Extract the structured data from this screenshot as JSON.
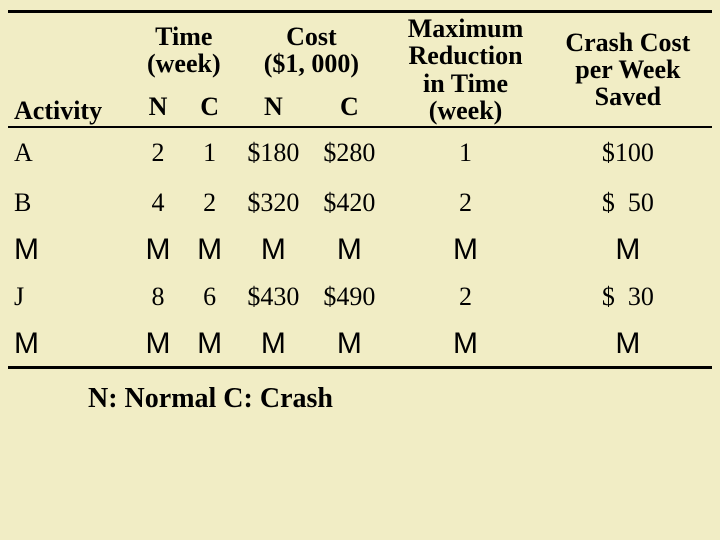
{
  "style": {
    "background_color": "#f1edc5",
    "text_color": "#000000",
    "rule_color": "#000000",
    "font_family": "Times New Roman",
    "header_font_weight": "bold",
    "base_font_size_pt": 20
  },
  "table": {
    "type": "table",
    "headers": {
      "activity": "Activity",
      "time_group": "Time\n(week)",
      "time_sub_n": "N",
      "time_sub_c": "C",
      "cost_group": "Cost\n($1, 000)",
      "cost_sub_n": "N",
      "cost_sub_c": "C",
      "max_reduction": "Maximum\nReduction\nin Time\n(week)",
      "crash_cost": "Crash Cost\nper Week\nSaved"
    },
    "rows": [
      {
        "activity": "A",
        "time_n": "2",
        "time_c": "1",
        "cost_n": "$180",
        "cost_c": "$280",
        "max_red": "1",
        "crash_cost": "$100"
      },
      {
        "activity": "B",
        "time_n": "4",
        "time_c": "2",
        "cost_n": "$320",
        "cost_c": "$420",
        "max_red": "2",
        "crash_cost": "$  50"
      },
      {
        "activity": "M",
        "time_n": "M",
        "time_c": "M",
        "cost_n": "M",
        "cost_c": "M",
        "max_red": "M",
        "crash_cost": "M",
        "ellipsis": true
      },
      {
        "activity": "J",
        "time_n": "8",
        "time_c": "6",
        "cost_n": "$430",
        "cost_c": "$490",
        "max_red": "2",
        "crash_cost": "$  30"
      },
      {
        "activity": "M",
        "time_n": "M",
        "time_c": "M",
        "cost_n": "M",
        "cost_c": "M",
        "max_red": "M",
        "crash_cost": "M",
        "ellipsis": true
      }
    ]
  },
  "legend": "N: Normal   C: Crash"
}
